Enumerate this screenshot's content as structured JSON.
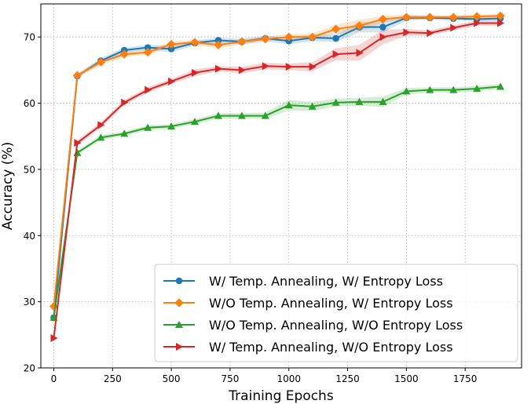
{
  "chart_data": {
    "type": "line",
    "xlabel": "Training Epochs",
    "ylabel": "Accuracy (%)",
    "xlim": [
      -55,
      1990
    ],
    "ylim": [
      20,
      75
    ],
    "xticks": [
      0,
      250,
      500,
      750,
      1000,
      1250,
      1500,
      1750
    ],
    "yticks": [
      20,
      30,
      40,
      50,
      60,
      70
    ],
    "grid": true,
    "legend_position": "bottom-right",
    "x": [
      0,
      100,
      200,
      300,
      400,
      500,
      600,
      700,
      800,
      900,
      1000,
      1100,
      1200,
      1300,
      1400,
      1500,
      1600,
      1700,
      1800,
      1900
    ],
    "series": [
      {
        "name": "W/ Temp. Annealing, W/ Entropy Loss",
        "color": "#1f77b4",
        "marker": "circle",
        "values": [
          27.6,
          64.1,
          66.4,
          68.0,
          68.4,
          68.2,
          69.1,
          69.5,
          69.3,
          69.8,
          69.4,
          69.9,
          69.8,
          71.5,
          71.5,
          72.9,
          72.9,
          72.8,
          72.7,
          72.8
        ],
        "band": [
          0.3,
          0.3,
          0.4,
          0.4,
          0.4,
          0.5,
          0.4,
          0.4,
          0.4,
          0.4,
          0.5,
          0.5,
          0.6,
          0.8,
          0.8,
          0.4,
          0.3,
          0.3,
          0.3,
          0.3
        ]
      },
      {
        "name": "W/O Temp. Annealing, W/ Entropy Loss",
        "color": "#ff7f0e",
        "marker": "diamond",
        "values": [
          29.3,
          64.2,
          66.2,
          67.4,
          67.7,
          68.9,
          69.2,
          68.8,
          69.3,
          69.7,
          70.0,
          70.0,
          71.2,
          71.7,
          72.7,
          73.0,
          73.0,
          73.0,
          73.1,
          73.2
        ],
        "band": [
          0.3,
          0.3,
          0.4,
          0.4,
          0.4,
          0.4,
          0.4,
          0.5,
          0.4,
          0.4,
          0.4,
          0.5,
          0.7,
          0.9,
          0.5,
          0.4,
          0.3,
          0.3,
          0.3,
          0.3
        ]
      },
      {
        "name": "W/O Temp. Annealing, W/O Entropy Loss",
        "color": "#2ca02c",
        "marker": "triangle-up",
        "values": [
          27.6,
          52.5,
          54.8,
          55.4,
          56.3,
          56.5,
          57.2,
          58.1,
          58.1,
          58.1,
          59.7,
          59.5,
          60.1,
          60.2,
          60.2,
          61.8,
          62.0,
          62.0,
          62.2,
          62.5
        ],
        "band": [
          0.3,
          0.3,
          0.4,
          0.3,
          0.4,
          0.3,
          0.4,
          0.4,
          0.4,
          0.5,
          0.8,
          0.7,
          0.6,
          0.6,
          0.8,
          0.5,
          0.4,
          0.4,
          0.4,
          0.4
        ]
      },
      {
        "name": "W/ Temp. Annealing, W/O Entropy Loss",
        "color": "#d62728",
        "marker": "triangle-right",
        "values": [
          24.5,
          54.0,
          56.7,
          60.1,
          62.0,
          63.3,
          64.6,
          65.2,
          65.0,
          65.6,
          65.5,
          65.5,
          67.4,
          67.6,
          70.0,
          70.7,
          70.6,
          71.4,
          72.1,
          72.1
        ],
        "band": [
          0.3,
          0.4,
          0.4,
          0.4,
          0.4,
          0.4,
          0.5,
          0.4,
          0.5,
          0.5,
          0.5,
          0.7,
          0.9,
          1.2,
          1.1,
          0.5,
          0.4,
          0.4,
          0.4,
          0.4
        ]
      }
    ]
  }
}
